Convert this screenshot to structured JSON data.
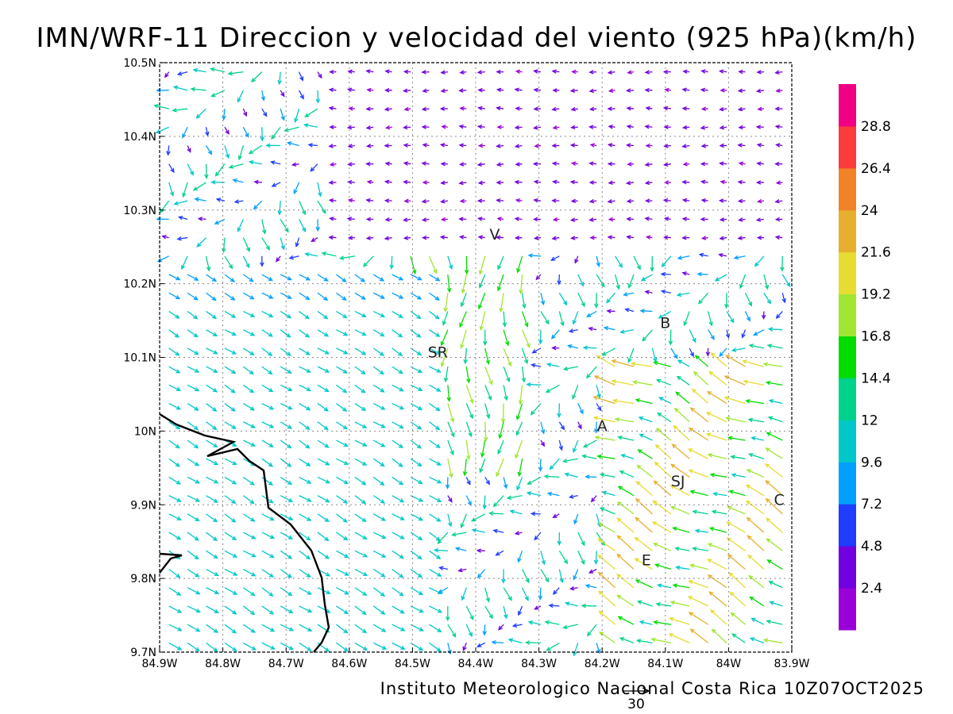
{
  "title": "IMN/WRF-11 Direccion y velocidad del viento (925 hPa)(km/h)",
  "footer": "Instituto Meteorologico Nacional Costa Rica 10Z07OCT2025",
  "reference_vector": {
    "value": "30"
  },
  "chart_data": {
    "type": "vector-field map",
    "variable": "Wind direction and speed at 925 hPa",
    "units": "km/h",
    "x_ticks": [
      "84.9W",
      "84.8W",
      "84.7W",
      "84.6W",
      "84.5W",
      "84.4W",
      "84.3W",
      "84.2W",
      "84.1W",
      "84W",
      "83.9W"
    ],
    "y_ticks": [
      "9.7N",
      "9.8N",
      "9.9N",
      "10N",
      "10.1N",
      "10.2N",
      "10.3N",
      "10.4N",
      "10.5N"
    ],
    "lon_range": [
      -84.9,
      -83.9
    ],
    "lat_range": [
      9.7,
      10.5
    ],
    "grid": true,
    "places": [
      {
        "label": "V",
        "lon": -84.37,
        "lat": 10.26
      },
      {
        "label": "B",
        "lon": -84.1,
        "lat": 10.14
      },
      {
        "label": "SR",
        "lon": -84.46,
        "lat": 10.1
      },
      {
        "label": "A",
        "lon": -84.2,
        "lat": 10.0
      },
      {
        "label": "SJ",
        "lon": -84.08,
        "lat": 9.925
      },
      {
        "label": "C",
        "lon": -83.92,
        "lat": 9.9
      },
      {
        "label": "E",
        "lon": -84.13,
        "lat": 9.818
      }
    ],
    "colorbar": {
      "levels": [
        "2.4",
        "4.8",
        "7.2",
        "9.6",
        "12",
        "14.4",
        "16.8",
        "19.2",
        "21.6",
        "24",
        "26.4",
        "28.8"
      ],
      "colors": [
        "#9a00d8",
        "#7000e0",
        "#1f3cff",
        "#00a0ff",
        "#00c8c8",
        "#00d28c",
        "#00dc00",
        "#a0e632",
        "#e6dc32",
        "#e6af2d",
        "#f08228",
        "#fa3c3c",
        "#f00082"
      ]
    }
  }
}
